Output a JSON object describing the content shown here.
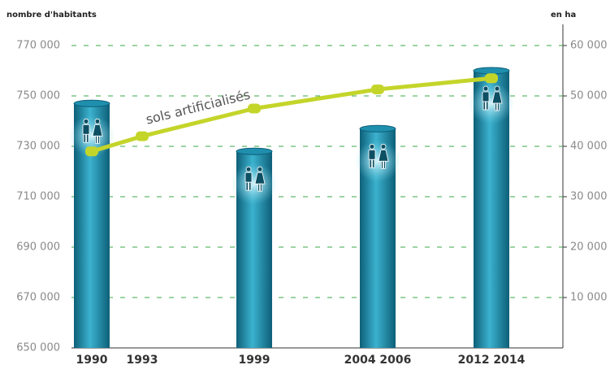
{
  "chart_data": {
    "type": "bar_line",
    "y_label": "nombre d'habitants",
    "y2_label": "en ha",
    "categories": [
      "1990",
      "1993",
      "1999",
      "2004 2006",
      "2012 2014"
    ],
    "series": [
      {
        "type": "bar",
        "color": "#1f8fae",
        "values": [
          747000,
          null,
          728000,
          737000,
          760000
        ]
      },
      {
        "type": "line",
        "name": "sols artificialisés",
        "color": "#c4d52a",
        "axis": "y2",
        "values": [
          39000,
          42000,
          47500,
          51300,
          53500
        ]
      }
    ],
    "ylim": [
      650000,
      770000
    ],
    "yticks": [
      {
        "value": 650000,
        "label": "650 000"
      },
      {
        "value": 670000,
        "label": "670 000"
      },
      {
        "value": 690000,
        "label": "690 000"
      },
      {
        "value": 710000,
        "label": "710 000"
      },
      {
        "value": 730000,
        "label": "730 000"
      },
      {
        "value": 750000,
        "label": "750 000"
      },
      {
        "value": 770000,
        "label": "770 000"
      }
    ],
    "y2lim": [
      0,
      60000
    ],
    "y2ticks": [
      {
        "value": 10000,
        "label": "10 000"
      },
      {
        "value": 20000,
        "label": "20 000"
      },
      {
        "value": 30000,
        "label": "30 000"
      },
      {
        "value": 40000,
        "label": "40 000"
      },
      {
        "value": 50000,
        "label": "50 000"
      },
      {
        "value": 60000,
        "label": "60 000"
      }
    ],
    "grid": true
  }
}
